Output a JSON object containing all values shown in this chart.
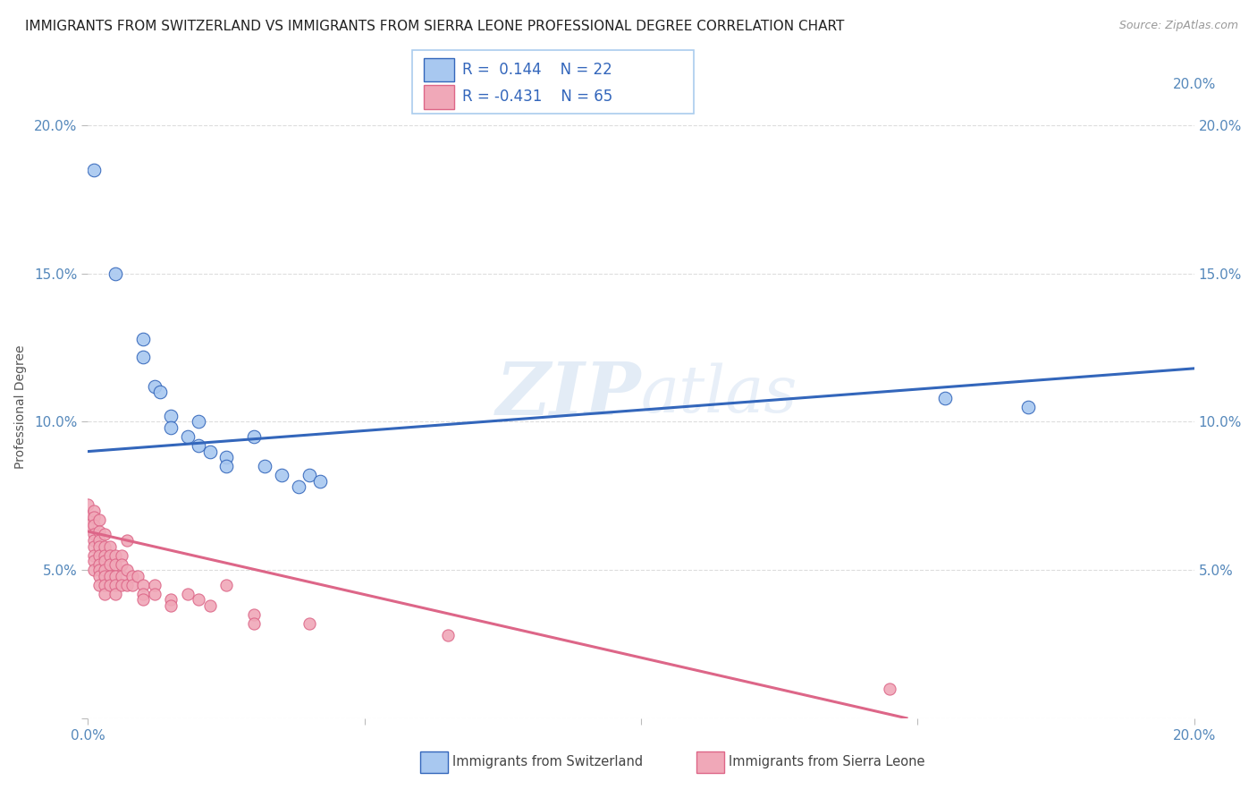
{
  "title": "IMMIGRANTS FROM SWITZERLAND VS IMMIGRANTS FROM SIERRA LEONE PROFESSIONAL DEGREE CORRELATION CHART",
  "source": "Source: ZipAtlas.com",
  "ylabel": "Professional Degree",
  "background_color": "#ffffff",
  "watermark": "ZIPatlas",
  "legend1_label": "Immigrants from Switzerland",
  "legend2_label": "Immigrants from Sierra Leone",
  "blue_R": "0.144",
  "blue_N": "22",
  "pink_R": "-0.431",
  "pink_N": "65",
  "blue_color": "#a8c8f0",
  "pink_color": "#f0a8b8",
  "blue_line_color": "#3366bb",
  "pink_line_color": "#dd6688",
  "blue_scatter": [
    [
      0.001,
      0.185
    ],
    [
      0.005,
      0.15
    ],
    [
      0.01,
      0.128
    ],
    [
      0.01,
      0.122
    ],
    [
      0.012,
      0.112
    ],
    [
      0.013,
      0.11
    ],
    [
      0.015,
      0.102
    ],
    [
      0.015,
      0.098
    ],
    [
      0.018,
      0.095
    ],
    [
      0.02,
      0.1
    ],
    [
      0.02,
      0.092
    ],
    [
      0.022,
      0.09
    ],
    [
      0.025,
      0.088
    ],
    [
      0.025,
      0.085
    ],
    [
      0.03,
      0.095
    ],
    [
      0.032,
      0.085
    ],
    [
      0.035,
      0.082
    ],
    [
      0.038,
      0.078
    ],
    [
      0.04,
      0.082
    ],
    [
      0.042,
      0.08
    ],
    [
      0.155,
      0.108
    ],
    [
      0.17,
      0.105
    ]
  ],
  "pink_scatter": [
    [
      0.0,
      0.072
    ],
    [
      0.0,
      0.068
    ],
    [
      0.0,
      0.065
    ],
    [
      0.001,
      0.07
    ],
    [
      0.001,
      0.068
    ],
    [
      0.001,
      0.065
    ],
    [
      0.001,
      0.062
    ],
    [
      0.001,
      0.06
    ],
    [
      0.001,
      0.058
    ],
    [
      0.001,
      0.055
    ],
    [
      0.001,
      0.053
    ],
    [
      0.001,
      0.05
    ],
    [
      0.002,
      0.067
    ],
    [
      0.002,
      0.063
    ],
    [
      0.002,
      0.06
    ],
    [
      0.002,
      0.058
    ],
    [
      0.002,
      0.055
    ],
    [
      0.002,
      0.052
    ],
    [
      0.002,
      0.05
    ],
    [
      0.002,
      0.048
    ],
    [
      0.002,
      0.045
    ],
    [
      0.003,
      0.062
    ],
    [
      0.003,
      0.058
    ],
    [
      0.003,
      0.055
    ],
    [
      0.003,
      0.053
    ],
    [
      0.003,
      0.05
    ],
    [
      0.003,
      0.048
    ],
    [
      0.003,
      0.045
    ],
    [
      0.003,
      0.042
    ],
    [
      0.004,
      0.058
    ],
    [
      0.004,
      0.055
    ],
    [
      0.004,
      0.052
    ],
    [
      0.004,
      0.048
    ],
    [
      0.004,
      0.045
    ],
    [
      0.005,
      0.055
    ],
    [
      0.005,
      0.052
    ],
    [
      0.005,
      0.048
    ],
    [
      0.005,
      0.045
    ],
    [
      0.005,
      0.042
    ],
    [
      0.006,
      0.055
    ],
    [
      0.006,
      0.052
    ],
    [
      0.006,
      0.048
    ],
    [
      0.006,
      0.045
    ],
    [
      0.007,
      0.06
    ],
    [
      0.007,
      0.05
    ],
    [
      0.007,
      0.045
    ],
    [
      0.008,
      0.048
    ],
    [
      0.008,
      0.045
    ],
    [
      0.009,
      0.048
    ],
    [
      0.01,
      0.045
    ],
    [
      0.01,
      0.042
    ],
    [
      0.01,
      0.04
    ],
    [
      0.012,
      0.045
    ],
    [
      0.012,
      0.042
    ],
    [
      0.015,
      0.04
    ],
    [
      0.015,
      0.038
    ],
    [
      0.018,
      0.042
    ],
    [
      0.02,
      0.04
    ],
    [
      0.022,
      0.038
    ],
    [
      0.025,
      0.045
    ],
    [
      0.03,
      0.035
    ],
    [
      0.03,
      0.032
    ],
    [
      0.04,
      0.032
    ],
    [
      0.065,
      0.028
    ],
    [
      0.145,
      0.01
    ]
  ],
  "blue_line_x": [
    0.0,
    0.2
  ],
  "blue_line_y": [
    0.09,
    0.118
  ],
  "pink_line_x": [
    0.0,
    0.148
  ],
  "pink_line_y": [
    0.063,
    0.0
  ],
  "xlim": [
    0.0,
    0.2
  ],
  "ylim": [
    0.0,
    0.21
  ],
  "xticks": [
    0.0,
    0.05,
    0.1,
    0.15,
    0.2
  ],
  "yticks": [
    0.0,
    0.05,
    0.1,
    0.15,
    0.2
  ],
  "tick_color": "#5588bb",
  "grid_color": "#dddddd",
  "title_fontsize": 11,
  "source_fontsize": 9,
  "axis_fontsize": 11,
  "ylabel_fontsize": 10
}
